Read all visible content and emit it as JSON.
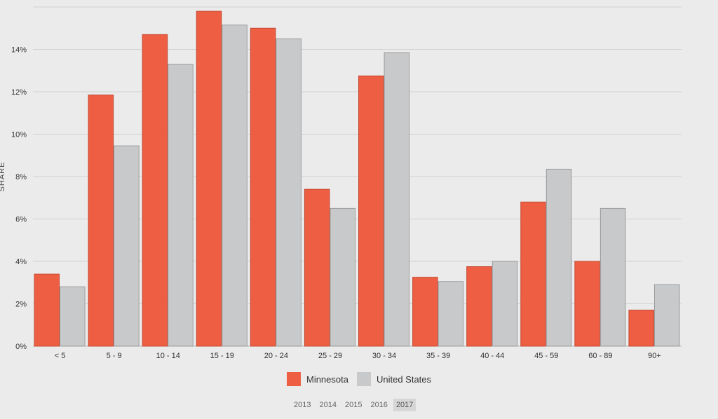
{
  "chart_data": {
    "type": "bar",
    "ylabel": "SHARE",
    "xlabel": "",
    "ylim": [
      0,
      16
    ],
    "yticks": [
      0,
      2,
      4,
      6,
      8,
      10,
      12,
      14
    ],
    "ytick_labels": [
      "0%",
      "2%",
      "4%",
      "6%",
      "8%",
      "10%",
      "12%",
      "14%"
    ],
    "grid": true,
    "legend_position": "bottom-center",
    "categories": [
      "< 5",
      "5 - 9",
      "10 - 14",
      "15 - 19",
      "20 - 24",
      "25 - 29",
      "30 - 34",
      "35 - 39",
      "40 - 44",
      "45 - 59",
      "60 - 89",
      "90+"
    ],
    "series": [
      {
        "name": "Minnesota",
        "color": "#ee5e42",
        "values": [
          3.4,
          11.85,
          14.7,
          15.8,
          15.0,
          7.4,
          12.75,
          3.25,
          3.75,
          6.8,
          4.0,
          1.7
        ]
      },
      {
        "name": "United States",
        "color": "#c8c9cb",
        "values": [
          2.8,
          9.45,
          13.3,
          15.15,
          14.5,
          6.5,
          13.85,
          3.05,
          4.0,
          8.35,
          6.5,
          2.9
        ]
      }
    ]
  },
  "years": {
    "items": [
      "2013",
      "2014",
      "2015",
      "2016",
      "2017"
    ],
    "selected": "2017"
  }
}
